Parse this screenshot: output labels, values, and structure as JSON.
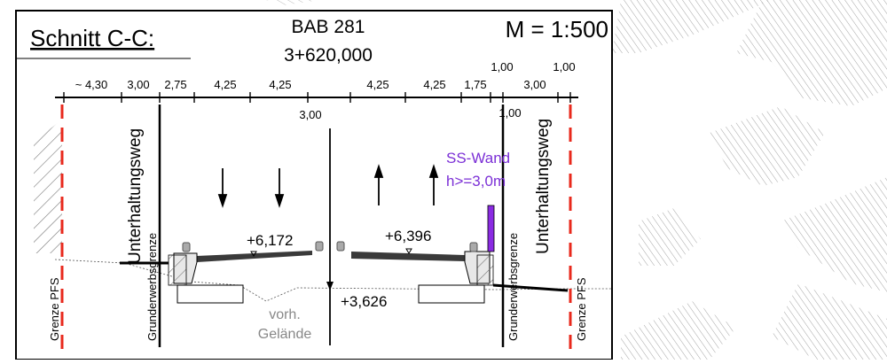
{
  "title": {
    "section_label": "Schnitt C-C:",
    "road": "BAB 281",
    "station": "3+620,000",
    "scale": "M = 1:500"
  },
  "dimensions": [
    {
      "key": "d1",
      "text": "~ 4,30"
    },
    {
      "key": "d2",
      "text": "3,00"
    },
    {
      "key": "d3",
      "text": "2,75"
    },
    {
      "key": "d4",
      "text": "4,25"
    },
    {
      "key": "d5",
      "text": "4,25"
    },
    {
      "key": "d6",
      "text": "4,25"
    },
    {
      "key": "d7",
      "text": "4,25"
    },
    {
      "key": "d8",
      "text": "1,75"
    },
    {
      "key": "d9",
      "text": "1,00"
    },
    {
      "key": "d10",
      "text": "3,00"
    },
    {
      "key": "d11",
      "text": "1,00"
    }
  ],
  "center_dimension": "3,00",
  "inner_dimension": "1,00",
  "labels": {
    "grenze_pfs": "Grenze PFS",
    "grunderwerbsgrenze": "Grunderwerbsgrenze",
    "unterhaltungsweg": "Unterhaltungsweg",
    "vorh": "vorh.",
    "gelaende": "Gelände",
    "ss_wand_1": "SS-Wand",
    "ss_wand_2": "h>=3,0m"
  },
  "elevations": {
    "left": "+6,172",
    "right": "+6,396",
    "ground": "+3,626"
  },
  "colors": {
    "pfs_line": "#e8291c",
    "wall": "#8a2be2",
    "wall_text": "#7b2fd6",
    "ground_text": "#888888",
    "hatch": "#9a9a9a"
  }
}
